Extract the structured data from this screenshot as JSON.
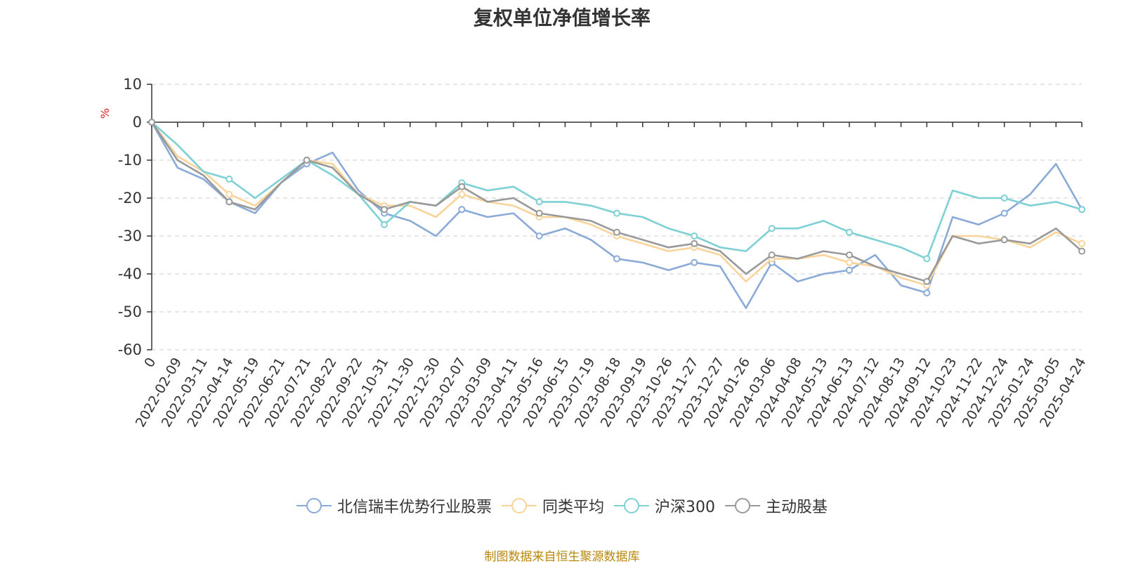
{
  "footer": {
    "source": "制图数据来自恒生聚源数据库"
  },
  "chart_data": {
    "type": "line",
    "title": "复权单位净值增长率",
    "ylabel": "%",
    "xlabel": "",
    "ylim": [
      -60,
      10
    ],
    "yticks": [
      10,
      0,
      -10,
      -20,
      -30,
      -40,
      -50,
      -60
    ],
    "grid": true,
    "legend": "bottom",
    "x": [
      "0",
      "2022-02-09",
      "2022-03-11",
      "2022-04-14",
      "2022-05-19",
      "2022-06-21",
      "2022-07-21",
      "2022-08-22",
      "2022-09-22",
      "2022-10-31",
      "2022-11-30",
      "2022-12-30",
      "2023-02-07",
      "2023-03-09",
      "2023-04-11",
      "2023-05-16",
      "2023-06-15",
      "2023-07-19",
      "2023-08-18",
      "2023-09-19",
      "2023-10-26",
      "2023-11-27",
      "2023-12-27",
      "2024-01-26",
      "2024-03-06",
      "2024-04-08",
      "2024-05-13",
      "2024-06-13",
      "2024-07-12",
      "2024-08-13",
      "2024-09-12",
      "2024-10-23",
      "2024-11-22",
      "2024-12-24",
      "2025-01-24",
      "2025-03-05",
      "2025-04-24"
    ],
    "series": [
      {
        "name": "北信瑞丰优势行业股票",
        "color": "#8aaad8",
        "values": [
          0,
          -12,
          -15,
          -21,
          -24,
          -16,
          -11,
          -8,
          -18,
          -24,
          -26,
          -30,
          -23,
          -25,
          -24,
          -30,
          -28,
          -31,
          -36,
          -37,
          -39,
          -37,
          -38,
          -49,
          -37,
          -42,
          -40,
          -39,
          -35,
          -43,
          -45,
          -25,
          -27,
          -24,
          -19,
          -11,
          -23
        ]
      },
      {
        "name": "同类平均",
        "color": "#f9d49a",
        "values": [
          0,
          -9,
          -13,
          -19,
          -22,
          -16,
          -10,
          -11,
          -19,
          -22,
          -22,
          -25,
          -19,
          -21,
          -22,
          -25,
          -25,
          -27,
          -30,
          -32,
          -34,
          -33,
          -35,
          -42,
          -36,
          -36,
          -35,
          -37,
          -38,
          -41,
          -43,
          -30,
          -30,
          -31,
          -33,
          -29,
          -32
        ]
      },
      {
        "name": "沪深300",
        "color": "#7dd0d4",
        "values": [
          0,
          -6,
          -13,
          -15,
          -20,
          -15,
          -10,
          -14,
          -19,
          -27,
          -21,
          -22,
          -16,
          -18,
          -17,
          -21,
          -21,
          -22,
          -24,
          -25,
          -28,
          -30,
          -33,
          -34,
          -28,
          -28,
          -26,
          -29,
          -31,
          -33,
          -36,
          -18,
          -20,
          -20,
          -22,
          -21,
          -23
        ]
      },
      {
        "name": "主动股基",
        "color": "#999999",
        "values": [
          0,
          -10,
          -14,
          -21,
          -23,
          -16,
          -10,
          -12,
          -19,
          -23,
          -21,
          -22,
          -17,
          -21,
          -20,
          -24,
          -25,
          -26,
          -29,
          -31,
          -33,
          -32,
          -34,
          -40,
          -35,
          -36,
          -34,
          -35,
          -38,
          -40,
          -42,
          -30,
          -32,
          -31,
          -32,
          -28,
          -34
        ]
      }
    ]
  }
}
